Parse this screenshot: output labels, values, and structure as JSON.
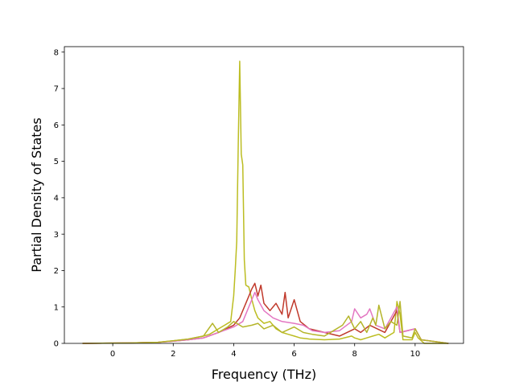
{
  "chart_data": {
    "type": "line",
    "xlabel": "Frequency (THz)",
    "ylabel": "Partial Density of States",
    "xlim": [
      -1.6,
      11.6
    ],
    "ylim": [
      0,
      8.15
    ],
    "xticks": [
      "0",
      "2",
      "4",
      "6",
      "8",
      "10"
    ],
    "yticks": [
      "0",
      "1",
      "2",
      "3",
      "4",
      "5",
      "6",
      "7",
      "8"
    ],
    "grid": false,
    "series": [
      {
        "color": "#bcbd22",
        "x": [
          -1.0,
          0.5,
          1.5,
          2.0,
          2.5,
          3.0,
          3.2,
          3.5,
          3.7,
          3.9,
          4.0,
          4.05,
          4.1,
          4.15,
          4.2,
          4.25,
          4.3,
          4.35,
          4.4,
          4.5,
          4.6,
          4.7,
          4.8,
          5.0,
          5.2,
          5.4,
          5.6,
          5.8,
          6.0,
          6.2,
          6.5,
          7.0,
          7.5,
          7.9,
          8.0,
          8.2,
          8.4,
          8.6,
          8.8,
          9.0,
          9.3,
          9.4,
          9.5,
          9.6,
          9.9,
          10.0,
          10.1,
          10.3,
          11.1
        ],
        "y": [
          0.0,
          0.01,
          0.03,
          0.07,
          0.12,
          0.2,
          0.25,
          0.4,
          0.5,
          0.6,
          1.3,
          2.0,
          2.8,
          5.5,
          7.75,
          5.2,
          4.9,
          2.3,
          1.6,
          1.55,
          1.2,
          0.9,
          0.7,
          0.55,
          0.6,
          0.4,
          0.3,
          0.25,
          0.2,
          0.15,
          0.12,
          0.1,
          0.12,
          0.2,
          0.15,
          0.1,
          0.15,
          0.2,
          0.25,
          0.15,
          0.3,
          1.15,
          0.8,
          0.1,
          0.1,
          0.3,
          0.15,
          0.0,
          0.0
        ]
      },
      {
        "color": "#c0392b",
        "x": [
          -1.0,
          0.5,
          1.5,
          2.0,
          2.5,
          3.0,
          3.5,
          4.0,
          4.2,
          4.4,
          4.6,
          4.7,
          4.8,
          4.9,
          5.0,
          5.2,
          5.4,
          5.6,
          5.7,
          5.8,
          6.0,
          6.2,
          6.5,
          7.0,
          7.5,
          8.0,
          8.2,
          8.5,
          9.0,
          9.4,
          9.5,
          10.0,
          10.2,
          11.1
        ],
        "y": [
          0.0,
          0.01,
          0.03,
          0.06,
          0.1,
          0.15,
          0.3,
          0.5,
          0.7,
          1.1,
          1.5,
          1.65,
          1.3,
          1.6,
          1.1,
          0.9,
          1.1,
          0.8,
          1.4,
          0.7,
          1.2,
          0.6,
          0.4,
          0.3,
          0.2,
          0.4,
          0.3,
          0.5,
          0.3,
          0.9,
          0.3,
          0.4,
          0.1,
          0.0
        ]
      },
      {
        "color": "#e377c2",
        "x": [
          -1.0,
          0.5,
          1.5,
          2.0,
          2.5,
          3.0,
          3.5,
          4.0,
          4.3,
          4.5,
          4.7,
          4.8,
          5.0,
          5.3,
          5.6,
          6.0,
          6.3,
          6.6,
          7.0,
          7.5,
          7.9,
          8.0,
          8.2,
          8.4,
          8.5,
          8.7,
          9.0,
          9.4,
          9.5,
          10.0,
          10.2,
          11.1
        ],
        "y": [
          0.0,
          0.01,
          0.03,
          0.06,
          0.1,
          0.15,
          0.3,
          0.45,
          0.6,
          1.0,
          1.4,
          1.2,
          0.9,
          0.7,
          0.6,
          0.55,
          0.5,
          0.35,
          0.3,
          0.35,
          0.6,
          0.95,
          0.7,
          0.8,
          0.95,
          0.5,
          0.4,
          1.0,
          0.3,
          0.4,
          0.1,
          0.0
        ]
      },
      {
        "color": "#b5b52a",
        "x": [
          -1.0,
          0.5,
          1.5,
          2.0,
          2.5,
          3.0,
          3.3,
          3.5,
          3.8,
          4.0,
          4.3,
          4.6,
          4.8,
          5.0,
          5.3,
          5.6,
          6.0,
          6.3,
          6.6,
          7.0,
          7.3,
          7.6,
          7.8,
          8.0,
          8.2,
          8.4,
          8.6,
          8.7,
          8.8,
          9.0,
          9.2,
          9.4,
          9.5,
          9.6,
          9.9,
          10.0,
          10.2,
          11.1
        ],
        "y": [
          0.0,
          0.01,
          0.03,
          0.07,
          0.12,
          0.2,
          0.55,
          0.3,
          0.45,
          0.6,
          0.45,
          0.5,
          0.55,
          0.4,
          0.5,
          0.3,
          0.45,
          0.3,
          0.25,
          0.2,
          0.35,
          0.5,
          0.75,
          0.4,
          0.6,
          0.3,
          0.7,
          0.5,
          1.05,
          0.4,
          0.6,
          0.5,
          1.15,
          0.2,
          0.15,
          0.4,
          0.1,
          0.0
        ]
      }
    ]
  }
}
